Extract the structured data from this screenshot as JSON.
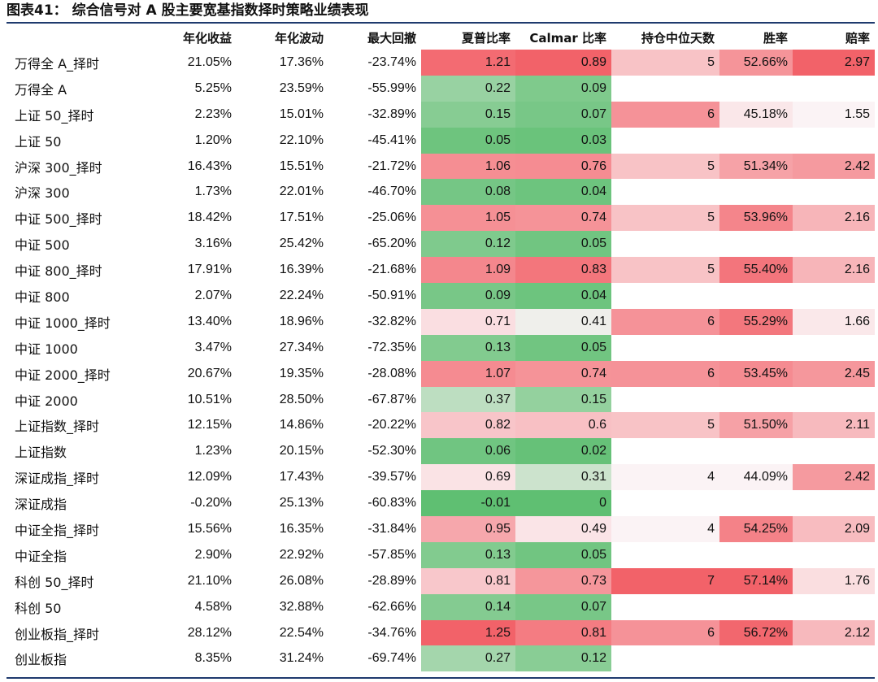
{
  "title": "图表41：  综合信号对 A 股主要宽基指数择时策略业绩表现",
  "columns": [
    "",
    "年化收益",
    "年化波动",
    "最大回撤",
    "夏普比率",
    "Calmar 比率",
    "持仓中位天数",
    "胜率",
    "赔率"
  ],
  "rows": [
    {
      "name": "万得全 A_择时",
      "ret": "21.05%",
      "vol": "17.36%",
      "mdd": "-23.74%",
      "sharpe": "1.21",
      "calmar": "0.89",
      "days": "5",
      "win": "52.66%",
      "odds": "2.97"
    },
    {
      "name": "万得全 A",
      "ret": "5.25%",
      "vol": "23.59%",
      "mdd": "-55.99%",
      "sharpe": "0.22",
      "calmar": "0.09",
      "days": "",
      "win": "",
      "odds": ""
    },
    {
      "name": "上证 50_择时",
      "ret": "2.23%",
      "vol": "15.01%",
      "mdd": "-32.89%",
      "sharpe": "0.15",
      "calmar": "0.07",
      "days": "6",
      "win": "45.18%",
      "odds": "1.55"
    },
    {
      "name": "上证 50",
      "ret": "1.20%",
      "vol": "22.10%",
      "mdd": "-45.41%",
      "sharpe": "0.05",
      "calmar": "0.03",
      "days": "",
      "win": "",
      "odds": ""
    },
    {
      "name": "沪深 300_择时",
      "ret": "16.43%",
      "vol": "15.51%",
      "mdd": "-21.72%",
      "sharpe": "1.06",
      "calmar": "0.76",
      "days": "5",
      "win": "51.34%",
      "odds": "2.42"
    },
    {
      "name": "沪深 300",
      "ret": "1.73%",
      "vol": "22.01%",
      "mdd": "-46.70%",
      "sharpe": "0.08",
      "calmar": "0.04",
      "days": "",
      "win": "",
      "odds": ""
    },
    {
      "name": "中证 500_择时",
      "ret": "18.42%",
      "vol": "17.51%",
      "mdd": "-25.06%",
      "sharpe": "1.05",
      "calmar": "0.74",
      "days": "5",
      "win": "53.96%",
      "odds": "2.16"
    },
    {
      "name": "中证 500",
      "ret": "3.16%",
      "vol": "25.42%",
      "mdd": "-65.20%",
      "sharpe": "0.12",
      "calmar": "0.05",
      "days": "",
      "win": "",
      "odds": ""
    },
    {
      "name": "中证 800_择时",
      "ret": "17.91%",
      "vol": "16.39%",
      "mdd": "-21.68%",
      "sharpe": "1.09",
      "calmar": "0.83",
      "days": "5",
      "win": "55.40%",
      "odds": "2.16"
    },
    {
      "name": "中证 800",
      "ret": "2.07%",
      "vol": "22.24%",
      "mdd": "-50.91%",
      "sharpe": "0.09",
      "calmar": "0.04",
      "days": "",
      "win": "",
      "odds": ""
    },
    {
      "name": "中证 1000_择时",
      "ret": "13.40%",
      "vol": "18.96%",
      "mdd": "-32.82%",
      "sharpe": "0.71",
      "calmar": "0.41",
      "days": "6",
      "win": "55.29%",
      "odds": "1.66"
    },
    {
      "name": "中证 1000",
      "ret": "3.47%",
      "vol": "27.34%",
      "mdd": "-72.35%",
      "sharpe": "0.13",
      "calmar": "0.05",
      "days": "",
      "win": "",
      "odds": ""
    },
    {
      "name": "中证 2000_择时",
      "ret": "20.67%",
      "vol": "19.35%",
      "mdd": "-28.08%",
      "sharpe": "1.07",
      "calmar": "0.74",
      "days": "6",
      "win": "53.45%",
      "odds": "2.45"
    },
    {
      "name": "中证 2000",
      "ret": "10.51%",
      "vol": "28.50%",
      "mdd": "-67.87%",
      "sharpe": "0.37",
      "calmar": "0.15",
      "days": "",
      "win": "",
      "odds": ""
    },
    {
      "name": "上证指数_择时",
      "ret": "12.15%",
      "vol": "14.86%",
      "mdd": "-20.22%",
      "sharpe": "0.82",
      "calmar": "0.6",
      "days": "5",
      "win": "51.50%",
      "odds": "2.11"
    },
    {
      "name": "上证指数",
      "ret": "1.23%",
      "vol": "20.15%",
      "mdd": "-52.30%",
      "sharpe": "0.06",
      "calmar": "0.02",
      "days": "",
      "win": "",
      "odds": ""
    },
    {
      "name": "深证成指_择时",
      "ret": "12.09%",
      "vol": "17.43%",
      "mdd": "-39.57%",
      "sharpe": "0.69",
      "calmar": "0.31",
      "days": "4",
      "win": "44.09%",
      "odds": "2.42"
    },
    {
      "name": "深证成指",
      "ret": "-0.20%",
      "vol": "25.13%",
      "mdd": "-60.83%",
      "sharpe": "-0.01",
      "calmar": "0",
      "days": "",
      "win": "",
      "odds": ""
    },
    {
      "name": "中证全指_择时",
      "ret": "15.56%",
      "vol": "16.35%",
      "mdd": "-31.84%",
      "sharpe": "0.95",
      "calmar": "0.49",
      "days": "4",
      "win": "54.25%",
      "odds": "2.09"
    },
    {
      "name": "中证全指",
      "ret": "2.90%",
      "vol": "22.92%",
      "mdd": "-57.85%",
      "sharpe": "0.13",
      "calmar": "0.05",
      "days": "",
      "win": "",
      "odds": ""
    },
    {
      "name": "科创 50_择时",
      "ret": "21.10%",
      "vol": "26.08%",
      "mdd": "-28.89%",
      "sharpe": "0.81",
      "calmar": "0.73",
      "days": "7",
      "win": "57.14%",
      "odds": "1.76"
    },
    {
      "name": "科创 50",
      "ret": "4.58%",
      "vol": "32.88%",
      "mdd": "-62.66%",
      "sharpe": "0.14",
      "calmar": "0.07",
      "days": "",
      "win": "",
      "odds": ""
    },
    {
      "name": "创业板指_择时",
      "ret": "28.12%",
      "vol": "22.54%",
      "mdd": "-34.76%",
      "sharpe": "1.25",
      "calmar": "0.81",
      "days": "6",
      "win": "56.72%",
      "odds": "2.12"
    },
    {
      "name": "创业板指",
      "ret": "8.35%",
      "vol": "31.24%",
      "mdd": "-69.74%",
      "sharpe": "0.27",
      "calmar": "0.12",
      "days": "",
      "win": "",
      "odds": ""
    }
  ],
  "colors": {
    "red": "#f26269",
    "white": "#fbf3f5",
    "green": "#5fbf72",
    "rule": "#1f3a6e"
  }
}
